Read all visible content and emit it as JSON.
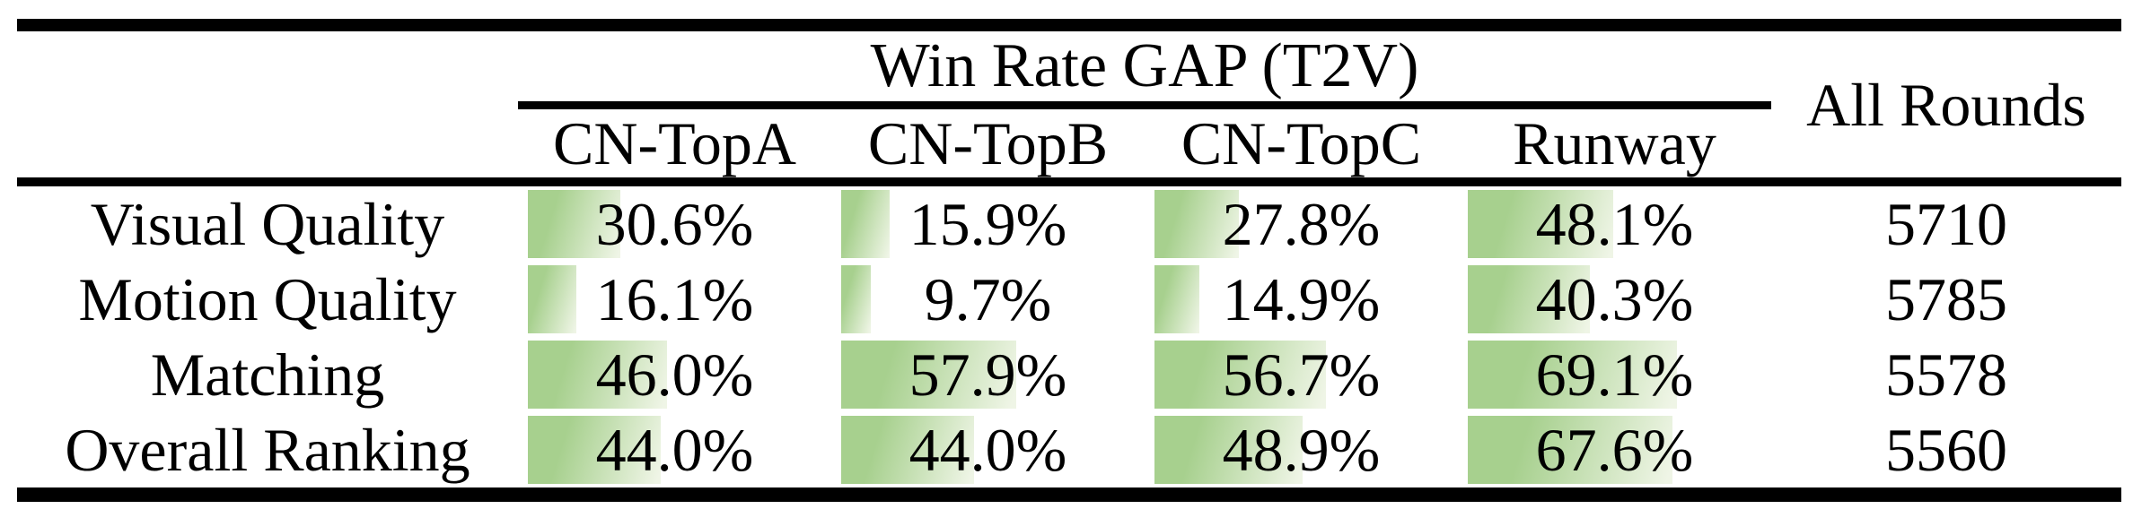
{
  "table": {
    "group_header": "Win Rate GAP (T2V)",
    "all_rounds_header": "All Rounds",
    "columns": [
      "CN-TopA",
      "CN-TopB",
      "CN-TopC",
      "Runway"
    ],
    "rows": [
      {
        "label": "Visual Quality",
        "values": [
          "30.6%",
          "15.9%",
          "27.8%",
          "48.1%"
        ],
        "all_rounds": "5710"
      },
      {
        "label": "Motion Quality",
        "values": [
          "16.1%",
          "9.7%",
          "14.9%",
          "40.3%"
        ],
        "all_rounds": "5785"
      },
      {
        "label": "Matching",
        "values": [
          "46.0%",
          "57.9%",
          "56.7%",
          "69.1%"
        ],
        "all_rounds": "5578"
      },
      {
        "label": "Overall Ranking",
        "values": [
          "44.0%",
          "44.0%",
          "48.9%",
          "67.6%"
        ],
        "all_rounds": "5560"
      }
    ]
  },
  "colors": {
    "bar_green": "#a7d08e",
    "bar_fade": "#eff5e6",
    "rule": "#000000",
    "text": "#000000",
    "background": "#ffffff"
  },
  "chart_data": {
    "type": "table",
    "title": "Win Rate GAP (T2V)",
    "columns": [
      "CN-TopA",
      "CN-TopB",
      "CN-TopC",
      "Runway",
      "All Rounds"
    ],
    "row_labels": [
      "Visual Quality",
      "Motion Quality",
      "Matching",
      "Overall Ranking"
    ],
    "win_rate_gap_percent": {
      "Visual Quality": {
        "CN-TopA": 30.6,
        "CN-TopB": 15.9,
        "CN-TopC": 27.8,
        "Runway": 48.1
      },
      "Motion Quality": {
        "CN-TopA": 16.1,
        "CN-TopB": 9.7,
        "CN-TopC": 14.9,
        "Runway": 40.3
      },
      "Matching": {
        "CN-TopA": 46.0,
        "CN-TopB": 57.9,
        "CN-TopC": 56.7,
        "Runway": 69.1
      },
      "Overall Ranking": {
        "CN-TopA": 44.0,
        "CN-TopB": 44.0,
        "CN-TopC": 48.9,
        "Runway": 67.6
      }
    },
    "all_rounds": {
      "Visual Quality": 5710,
      "Motion Quality": 5785,
      "Matching": 5578,
      "Overall Ranking": 5560
    },
    "layout_hint": "in-cell green gradient data bars, left-aligned, width proportional to percent where 100% = full column width"
  }
}
